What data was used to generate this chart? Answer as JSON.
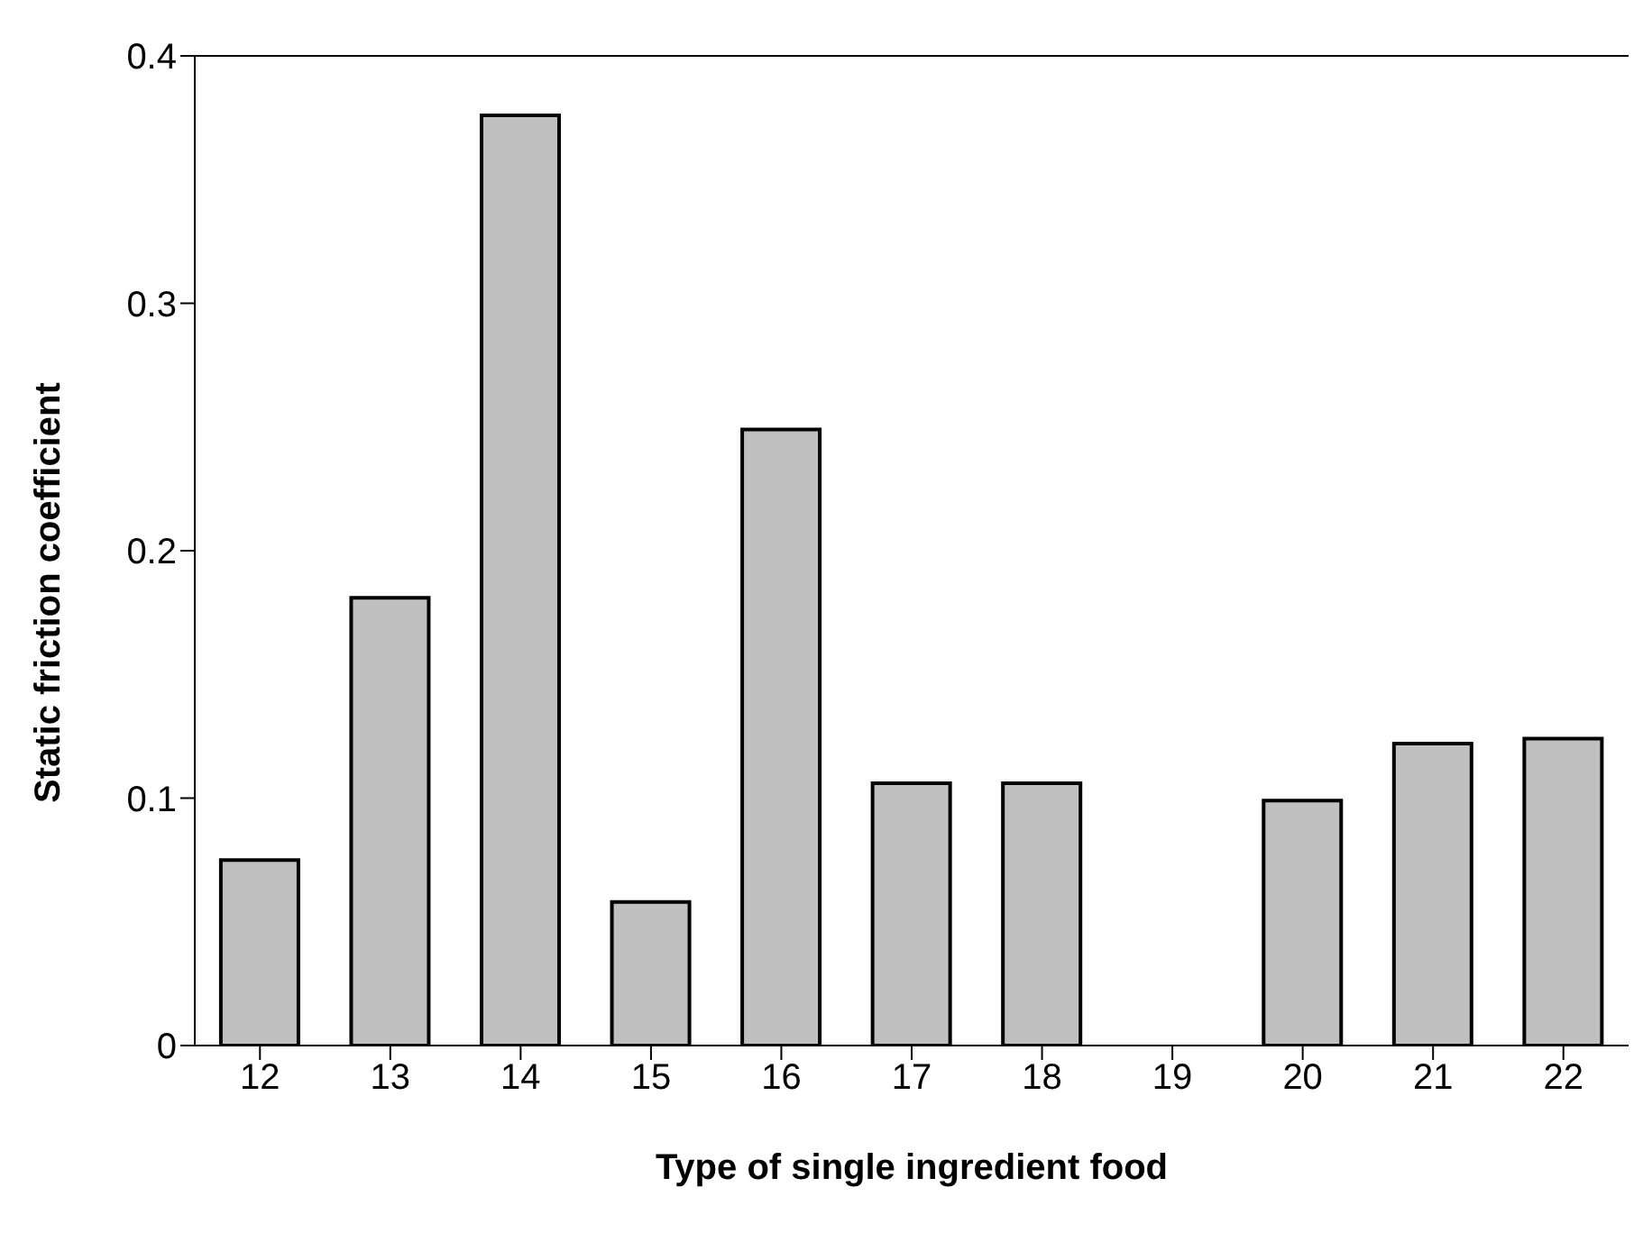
{
  "chart_data": {
    "type": "bar",
    "xlabel": "Type of single ingredient food",
    "ylabel": "Static friction coefficient",
    "categories": [
      "12",
      "13",
      "14",
      "15",
      "16",
      "17",
      "18",
      "19",
      "20",
      "21",
      "22"
    ],
    "values": [
      0.075,
      0.181,
      0.376,
      0.058,
      0.249,
      0.106,
      0.106,
      null,
      0.099,
      0.122,
      0.124
    ],
    "color": "#c0c0c0",
    "ylim": [
      0,
      0.4
    ],
    "yticks": [
      0,
      0.1,
      0.2,
      0.3,
      0.4
    ],
    "grid": false,
    "legend": false
  }
}
